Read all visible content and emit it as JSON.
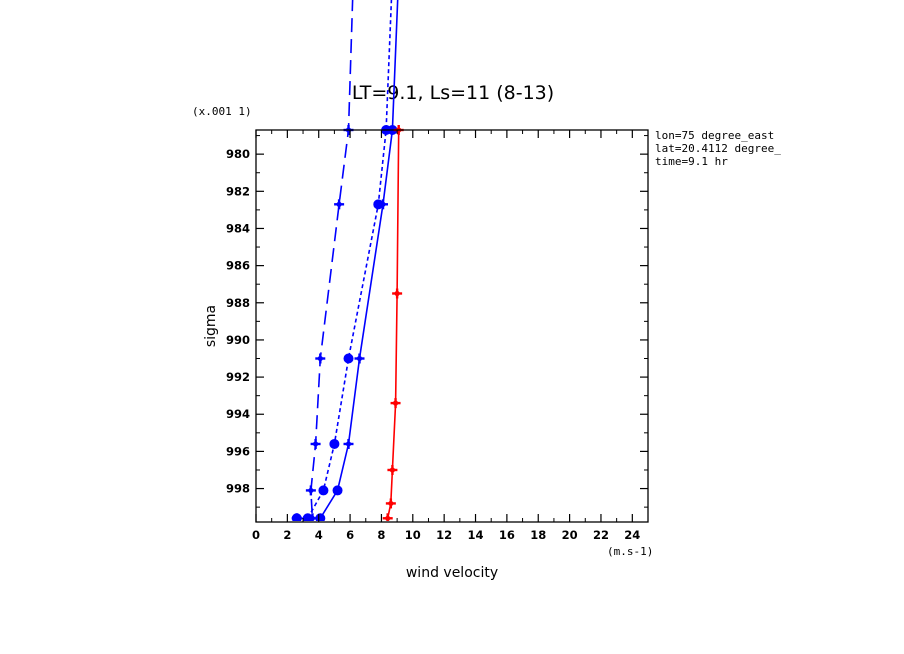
{
  "chart_data": {
    "type": "line",
    "title": "LT=9.1, Ls=11 (8-13)",
    "xlabel": "wind velocity",
    "ylabel": "sigma",
    "x_unit": "(m.s-1)",
    "y_multiplier": "(x.001 1)",
    "xlim": [
      0,
      25
    ],
    "ylim": [
      999.8,
      978.7
    ],
    "x_ticks": [
      0,
      2,
      4,
      6,
      8,
      10,
      12,
      14,
      16,
      18,
      20,
      22,
      24
    ],
    "y_ticks": [
      980,
      982,
      984,
      986,
      988,
      990,
      992,
      994,
      996,
      998
    ],
    "x_tick_labels": [
      "0",
      "2",
      "4",
      "6",
      "8",
      "10",
      "12",
      "14",
      "16",
      "18",
      "20",
      "22",
      "24"
    ],
    "y_tick_labels": [
      "980",
      "982",
      "984",
      "986",
      "988",
      "990",
      "992",
      "994",
      "996",
      "998"
    ],
    "info": [
      "lon=75 degree_east",
      "lat=20.4112 degree_",
      "time=9.1 hr"
    ],
    "grid": false,
    "series": [
      {
        "color": "#0000ff",
        "dash": "14,7",
        "marker": "cross",
        "points": [
          [
            2.6,
            999.6
          ],
          [
            3.6,
            999.6
          ],
          [
            3.5,
            998.1
          ],
          [
            3.8,
            995.6
          ],
          [
            4.1,
            991.0
          ],
          [
            5.3,
            982.7
          ],
          [
            5.9,
            978.7
          ],
          [
            6.6,
            960
          ]
        ]
      },
      {
        "color": "#0000ff",
        "dash": "4,3",
        "marker": "circle",
        "points": [
          [
            3.3,
            999.6
          ],
          [
            4.3,
            998.1
          ],
          [
            5.0,
            995.6
          ],
          [
            5.9,
            991.0
          ],
          [
            7.8,
            982.7
          ],
          [
            8.3,
            978.7
          ],
          [
            9.2,
            960
          ]
        ]
      },
      {
        "color": "#0000ff",
        "dash": "",
        "marker": "mixed",
        "points": [
          [
            2.6,
            999.6
          ],
          [
            4.1,
            999.6
          ],
          [
            5.2,
            998.1
          ],
          [
            5.9,
            995.6
          ],
          [
            6.6,
            991.0
          ],
          [
            8.1,
            982.7
          ],
          [
            8.7,
            978.7
          ],
          [
            9.6,
            960
          ]
        ]
      },
      {
        "color": "#ff0000",
        "dash": "",
        "marker": "cross",
        "points": [
          [
            8.4,
            999.6
          ],
          [
            8.6,
            998.8
          ],
          [
            8.7,
            997.0
          ],
          [
            8.9,
            993.4
          ],
          [
            9.0,
            987.5
          ],
          [
            9.1,
            978.7
          ]
        ]
      }
    ]
  }
}
